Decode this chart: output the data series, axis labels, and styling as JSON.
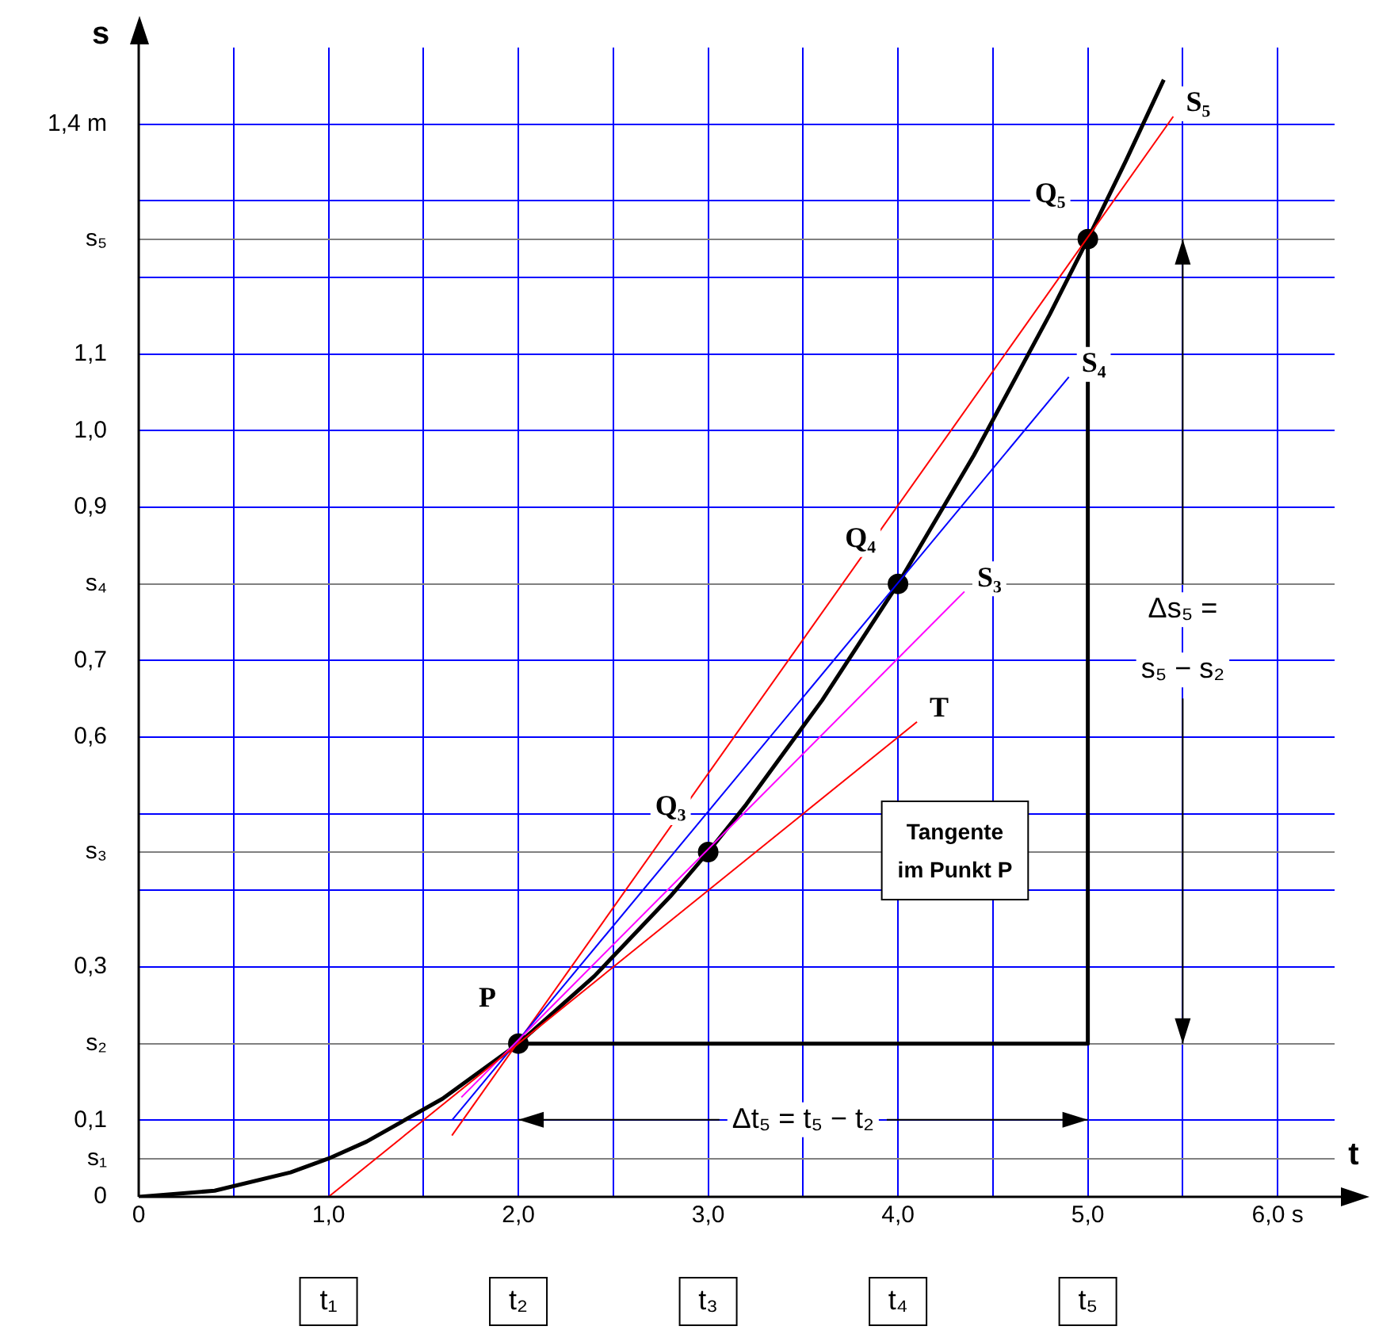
{
  "chart_data": {
    "type": "line",
    "xlabel": "t",
    "ylabel": "s",
    "xlim": [
      0,
      6.3
    ],
    "ylim": [
      0,
      1.5
    ],
    "xticks": [
      0,
      {
        "value": 0.5,
        "label": null
      },
      {
        "value": 1,
        "label": "1,0"
      },
      {
        "value": 1.5,
        "label": null
      },
      {
        "value": 2,
        "label": "2,0"
      },
      {
        "value": 2.5,
        "label": null
      },
      {
        "value": 3,
        "label": "3,0"
      },
      {
        "value": 3.5,
        "label": null
      },
      {
        "value": 4,
        "label": "4,0"
      },
      {
        "value": 4.5,
        "label": null
      },
      {
        "value": 5,
        "label": "5,0"
      },
      {
        "value": 5.5,
        "label": null
      },
      {
        "value": 6,
        "label": "6,0 s"
      }
    ],
    "yticks": [
      0,
      {
        "value": 0.05,
        "label": "s₁"
      },
      {
        "value": 0.1,
        "label": "0,1"
      },
      {
        "value": 0.2,
        "label": "s₂"
      },
      {
        "value": 0.3,
        "label": "0,3"
      },
      {
        "value": 0.4,
        "label": null
      },
      {
        "value": 0.45,
        "label": "s₃"
      },
      {
        "value": 0.5,
        "label": null
      },
      {
        "value": 0.6,
        "label": "0,6"
      },
      {
        "value": 0.7,
        "label": "0,7"
      },
      {
        "value": 0.8,
        "label": "s₄"
      },
      {
        "value": 0.9,
        "label": "0,9"
      },
      {
        "value": 1,
        "label": "1,0"
      },
      {
        "value": 1.1,
        "label": "1,1"
      },
      {
        "value": 1.2,
        "label": null
      },
      {
        "value": 1.25,
        "label": "s₅"
      },
      {
        "value": 1.3,
        "label": null
      },
      {
        "value": 1.4,
        "label": "1,4 m"
      }
    ],
    "grid": true,
    "legend": false,
    "series": [
      {
        "name": "T",
        "color": "#ff0000",
        "x": [
          1,
          4.1
        ],
        "values": [
          0,
          0.62
        ]
      },
      {
        "name": "S₃",
        "color": "#ff00ff",
        "x": [
          1.7,
          4.35
        ],
        "values": [
          0.13,
          0.79
        ]
      },
      {
        "name": "S₄",
        "color": "#0000ff",
        "x": [
          1.65,
          4.9
        ],
        "values": [
          0.1,
          1.07
        ]
      },
      {
        "name": "S₅",
        "color": "#ff0000",
        "x": [
          1.65,
          5.45
        ],
        "values": [
          0.08,
          1.41
        ]
      },
      {
        "color": "#000000",
        "x": [
          2,
          5,
          5
        ],
        "values": [
          0.2,
          0.2,
          1.25
        ]
      },
      {
        "color": "#000000",
        "x": [
          0,
          0.4,
          0.8,
          1,
          1.2,
          1.6,
          2,
          2.4,
          2.8,
          3,
          3.2,
          3.6,
          4,
          4.4,
          4.8,
          5,
          5.2,
          5.4
        ],
        "values": [
          0,
          0.008,
          0.032,
          0.05,
          0.072,
          0.128,
          0.2,
          0.288,
          0.392,
          0.45,
          0.512,
          0.648,
          0.8,
          0.968,
          1.152,
          1.25,
          1.352,
          1.458
        ]
      },
      {
        "type": "scatter",
        "marker": "circle",
        "color": "#000000",
        "x": [
          2,
          3,
          4,
          5
        ],
        "values": [
          0.2,
          0.45,
          0.8,
          1.25
        ]
      }
    ],
    "annotations": [
      {
        "text": "P",
        "x": 2,
        "y": 0.2
      },
      {
        "text": "Q₃",
        "x": 3,
        "y": 0.45
      },
      {
        "text": "Q₄",
        "x": 4,
        "y": 0.8
      },
      {
        "text": "Q₅",
        "x": 5,
        "y": 1.25
      },
      {
        "text": "Δt₅ = t₅ − t₂",
        "x": 3.5,
        "y": 0.2
      },
      "Δs₅ = s₅ − s₂",
      "Tangente im Punkt P",
      "t₁",
      "t₂",
      "t₃",
      "t₄",
      "t₅"
    ]
  }
}
